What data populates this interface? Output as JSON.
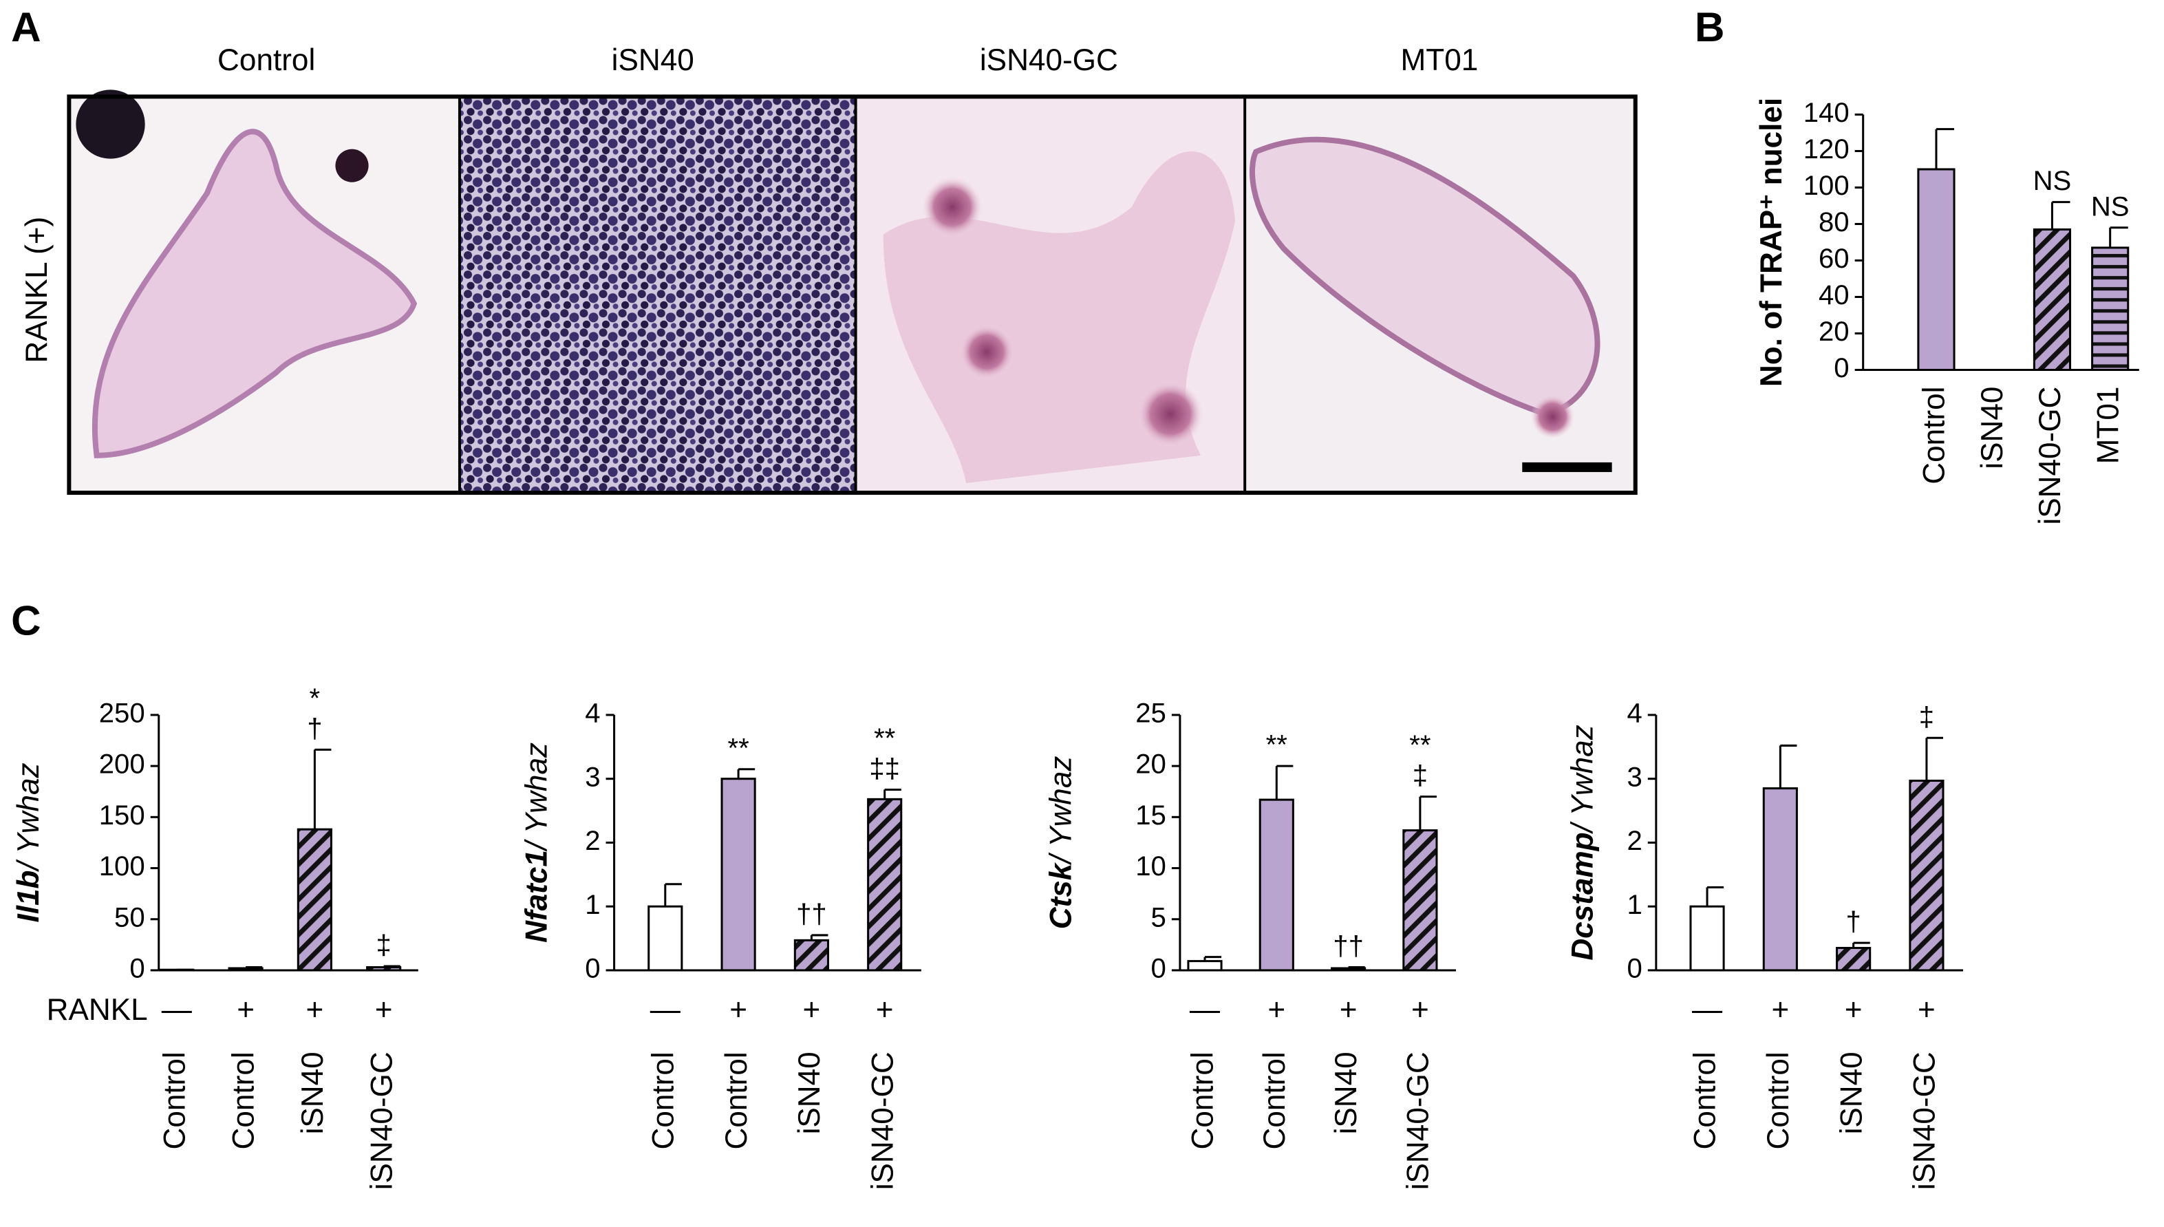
{
  "panel_a": {
    "label": "A",
    "row_label": "RANKL (+)",
    "column_titles": [
      "Control",
      "iSN40",
      "iSN40-GC",
      "MT01"
    ]
  },
  "chart_data": [
    {
      "type": "bar",
      "panel_label": "B",
      "ylabel": "No. of TRAP⁺ nuclei",
      "categories": [
        "Control",
        "iSN40",
        "iSN40-GC",
        "MT01"
      ],
      "values": [
        110,
        0,
        77,
        67
      ],
      "errors": [
        22,
        0,
        15,
        11
      ],
      "fills": [
        "solid",
        "solid",
        "diagonal",
        "horizontal"
      ],
      "annotations": [
        [],
        [],
        [
          "NS"
        ],
        [
          "NS"
        ]
      ],
      "color": "#b9a3cf",
      "ylim": [
        0,
        140
      ],
      "yticks": [
        0,
        20,
        40,
        60,
        80,
        100,
        120,
        140
      ]
    },
    {
      "type": "bar",
      "panel_label": "C",
      "ylabel": {
        "gene": "Il1b",
        "reference": "/ Ywhaz"
      },
      "categories": [
        "Control",
        "Control",
        "iSN40",
        "iSN40-GC"
      ],
      "rankl_label": "RANKL",
      "rankl": [
        "—",
        "+",
        "+",
        "+"
      ],
      "values": [
        0.5,
        2,
        138,
        3
      ],
      "errors": [
        0,
        1,
        78,
        1
      ],
      "fills": [
        "open",
        "solid",
        "diagonal",
        "diagonal"
      ],
      "annotations": [
        [],
        [],
        [
          "*",
          "†"
        ],
        [
          "‡"
        ]
      ],
      "color": "#b9a3cf",
      "ylim": [
        0,
        250
      ],
      "yticks": [
        0,
        50,
        100,
        150,
        200,
        250
      ]
    },
    {
      "type": "bar",
      "ylabel": {
        "gene": "Nfatc1",
        "reference": "/ Ywhaz"
      },
      "categories": [
        "Control",
        "Control",
        "iSN40",
        "iSN40-GC"
      ],
      "rankl": [
        "—",
        "+",
        "+",
        "+"
      ],
      "values": [
        1.0,
        3.0,
        0.47,
        2.68
      ],
      "errors": [
        0.35,
        0.15,
        0.08,
        0.15
      ],
      "fills": [
        "open",
        "solid",
        "diagonal",
        "diagonal"
      ],
      "annotations": [
        [],
        [
          "**"
        ],
        [
          "††"
        ],
        [
          "**",
          "‡‡"
        ]
      ],
      "color": "#b9a3cf",
      "ylim": [
        0,
        4
      ],
      "yticks": [
        0,
        1,
        2,
        3,
        4
      ]
    },
    {
      "type": "bar",
      "ylabel": {
        "gene": "Ctsk",
        "reference": "/ Ywhaz"
      },
      "categories": [
        "Control",
        "Control",
        "iSN40",
        "iSN40-GC"
      ],
      "rankl": [
        "—",
        "+",
        "+",
        "+"
      ],
      "values": [
        0.9,
        16.7,
        0.2,
        13.7
      ],
      "errors": [
        0.4,
        3.3,
        0.1,
        3.3
      ],
      "fills": [
        "open",
        "solid",
        "diagonal",
        "diagonal"
      ],
      "annotations": [
        [],
        [
          "**"
        ],
        [
          "††"
        ],
        [
          "**",
          "‡"
        ]
      ],
      "color": "#b9a3cf",
      "ylim": [
        0,
        25
      ],
      "yticks": [
        0,
        5,
        10,
        15,
        20,
        25
      ]
    },
    {
      "type": "bar",
      "ylabel": {
        "gene": "Dcstamp",
        "reference": "/ Ywhaz"
      },
      "categories": [
        "Control",
        "Control",
        "iSN40",
        "iSN40-GC"
      ],
      "rankl": [
        "—",
        "+",
        "+",
        "+"
      ],
      "values": [
        1.0,
        2.85,
        0.35,
        2.97
      ],
      "errors": [
        0.3,
        0.67,
        0.08,
        0.67
      ],
      "fills": [
        "open",
        "solid",
        "diagonal",
        "diagonal"
      ],
      "annotations": [
        [],
        [],
        [
          "†"
        ],
        [
          "‡"
        ]
      ],
      "color": "#b9a3cf",
      "ylim": [
        0,
        4
      ],
      "yticks": [
        0,
        1,
        2,
        3,
        4
      ]
    }
  ]
}
